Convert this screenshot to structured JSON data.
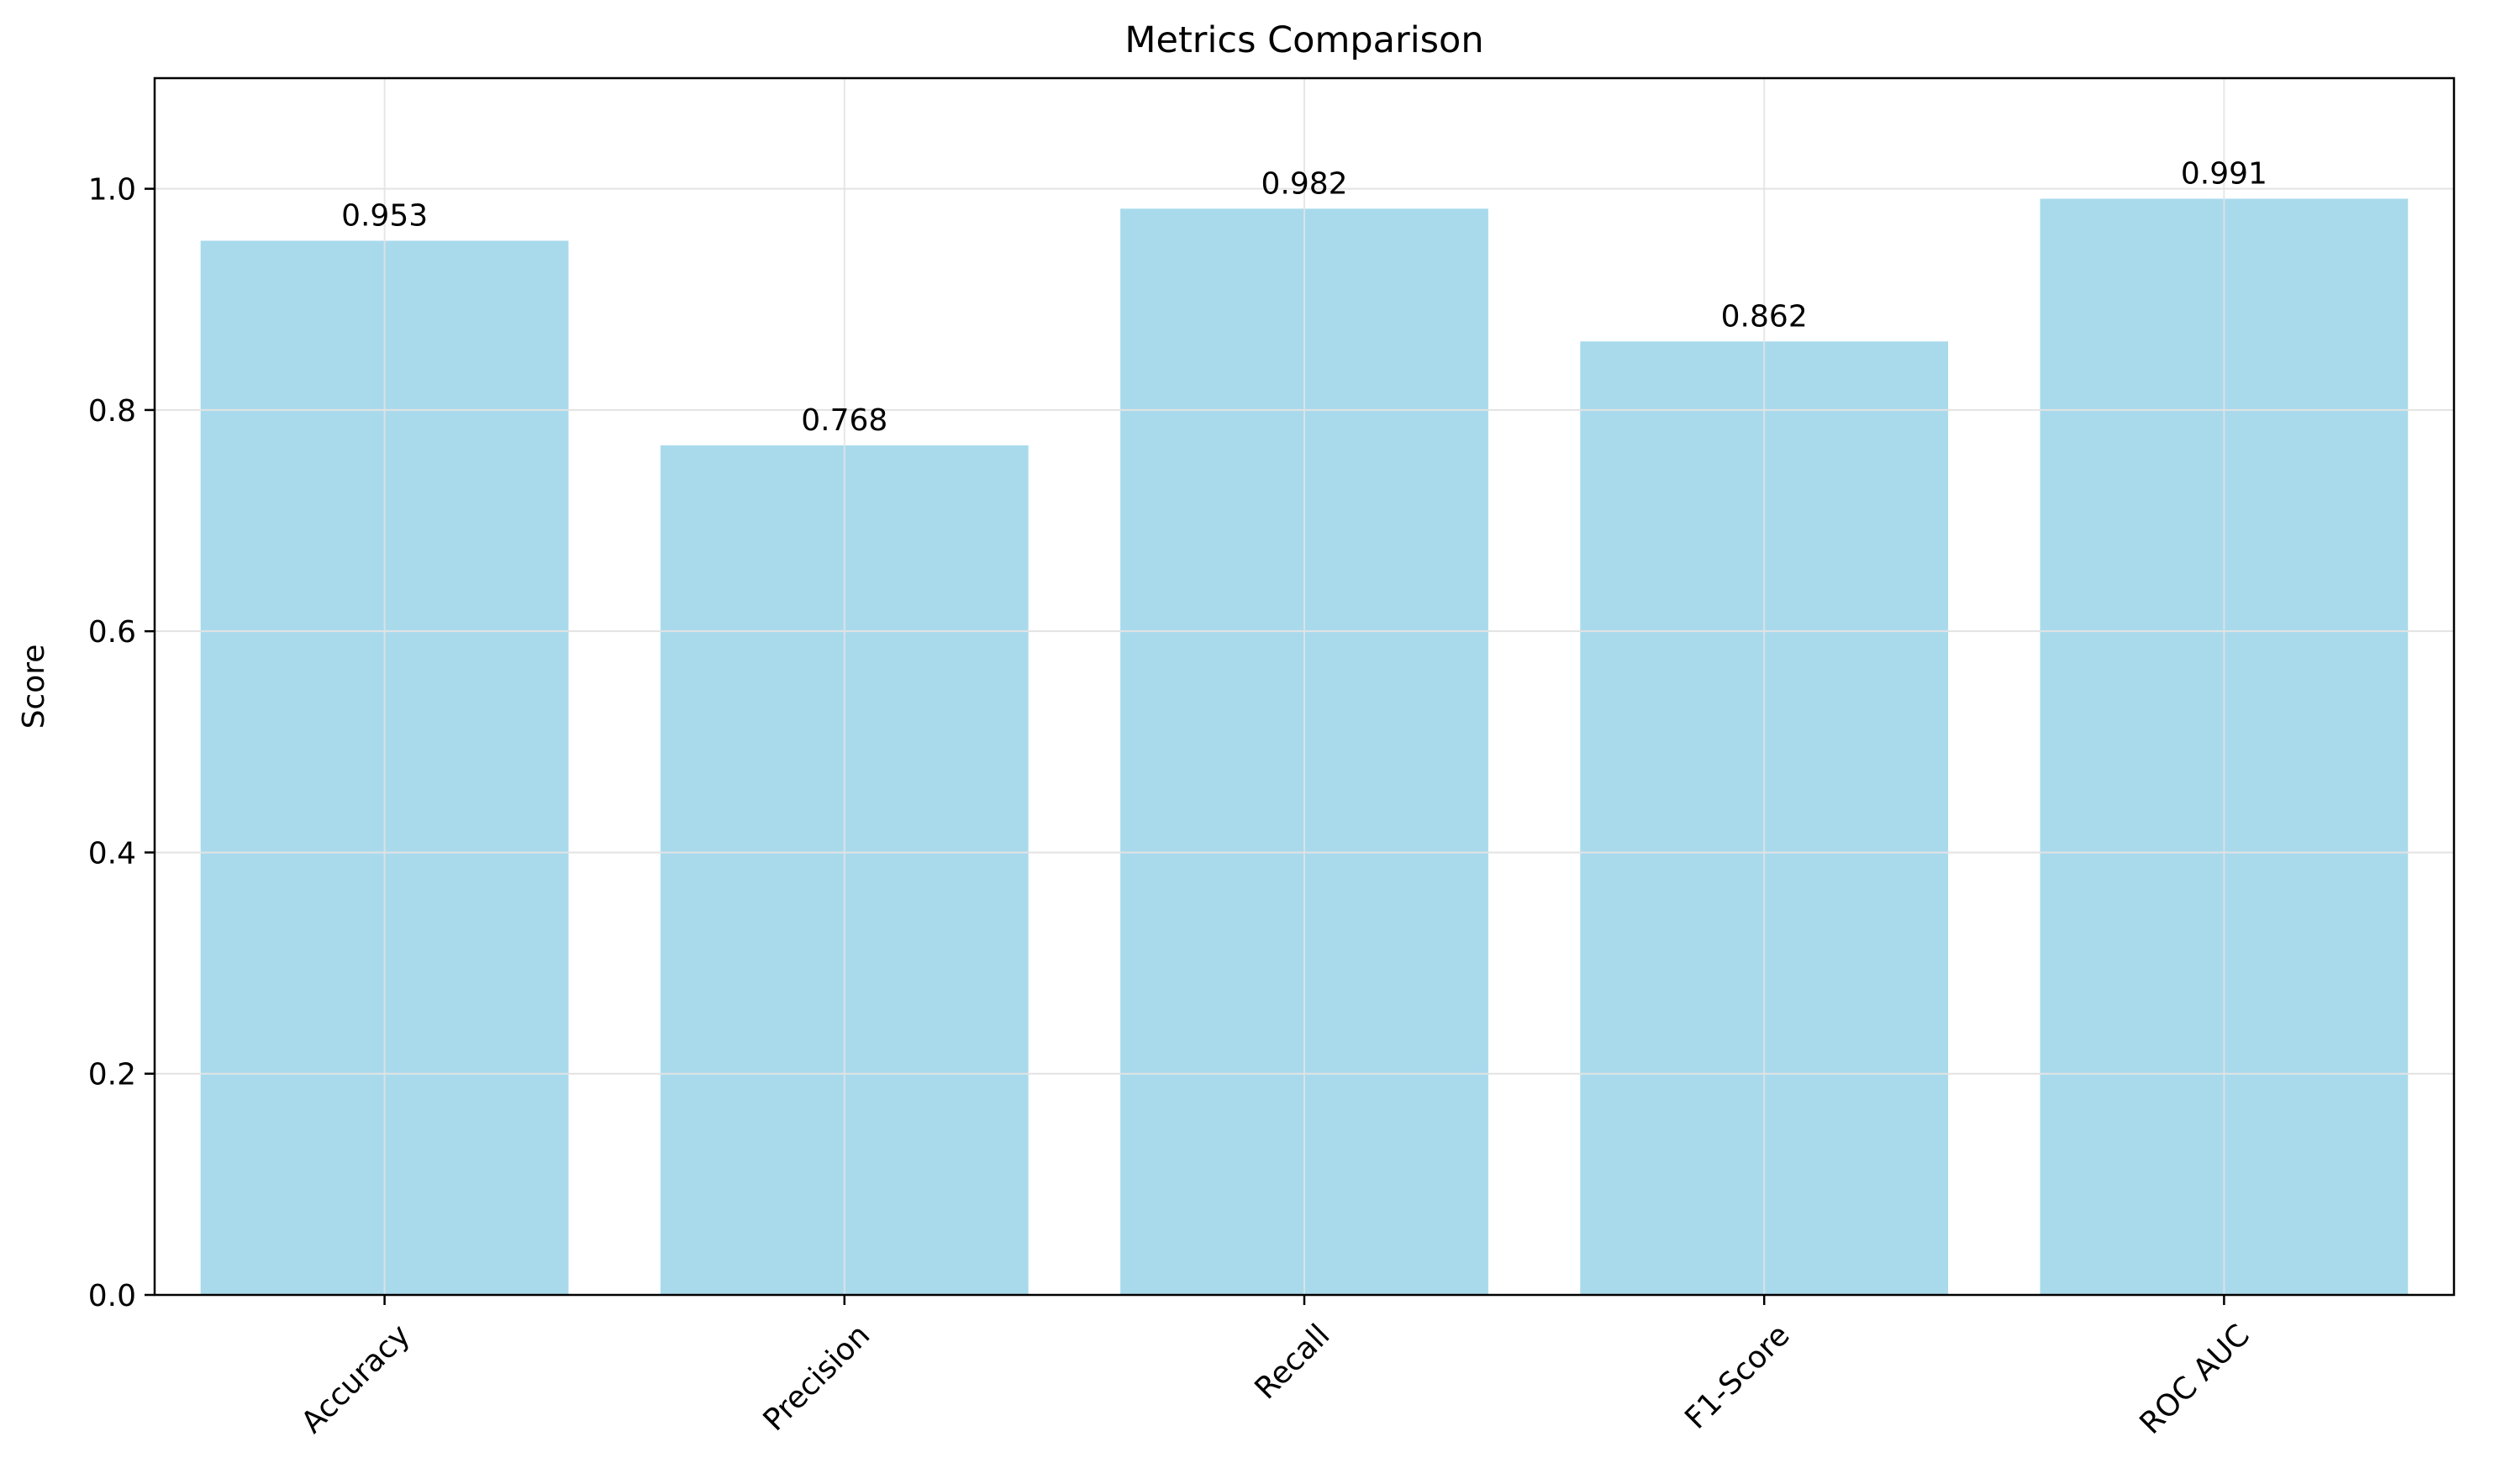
{
  "chart_data": {
    "type": "bar",
    "title": "Metrics Comparison",
    "xlabel": "",
    "ylabel": "Score",
    "categories": [
      "Accuracy",
      "Precision",
      "Recall",
      "F1-Score",
      "ROC AUC"
    ],
    "values": [
      0.953,
      0.768,
      0.982,
      0.862,
      0.991
    ],
    "data_labels": [
      "0.953",
      "0.768",
      "0.982",
      "0.862",
      "0.991"
    ],
    "ylim": [
      0,
      1.1
    ],
    "yticks": [
      0.0,
      0.2,
      0.4,
      0.6,
      0.8,
      1.0
    ],
    "ytick_labels": [
      "0.0",
      "0.2",
      "0.4",
      "0.6",
      "0.8",
      "1.0"
    ],
    "grid": true,
    "legend": "none",
    "colors": {
      "bar": "#a8daec",
      "grid": "#e3e3e3",
      "axis": "#000000",
      "text": "#000000"
    }
  }
}
